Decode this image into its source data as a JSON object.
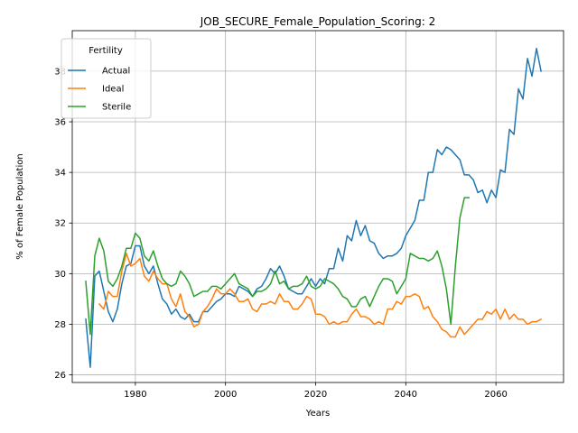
{
  "chart_data": {
    "type": "line",
    "title": "JOB_SECURE_Female_Population_Scoring: 2",
    "xlabel": "Years",
    "ylabel": "% of Female Population",
    "xlim": [
      1966,
      2075
    ],
    "ylim": [
      25.7,
      39.6
    ],
    "xticks": [
      1980,
      2000,
      2020,
      2040,
      2060
    ],
    "xtick_labels": [
      "1980",
      "2000",
      "2020",
      "2040",
      "2060"
    ],
    "yticks": [
      26,
      28,
      30,
      32,
      34,
      36,
      38
    ],
    "ytick_labels": [
      "26",
      "28",
      "30",
      "32",
      "34",
      "36",
      "38"
    ],
    "grid": true,
    "legend": {
      "title": "Fertility",
      "placement": "top-left"
    },
    "series": [
      {
        "name": "Actual",
        "color": "#1f77b4",
        "x": [
          1969,
          1970,
          1971,
          1972,
          1973,
          1974,
          1975,
          1976,
          1977,
          1978,
          1979,
          1980,
          1981,
          1982,
          1983,
          1984,
          1985,
          1986,
          1987,
          1988,
          1989,
          1990,
          1991,
          1992,
          1993,
          1994,
          1995,
          1996,
          1997,
          1998,
          1999,
          2000,
          2001,
          2002,
          2003,
          2004,
          2005,
          2006,
          2007,
          2008,
          2009,
          2010,
          2011,
          2012,
          2013,
          2014,
          2015,
          2016,
          2017,
          2018,
          2019,
          2020,
          2021,
          2022,
          2023,
          2024,
          2025,
          2026,
          2027,
          2028,
          2029,
          2030,
          2031,
          2032,
          2033,
          2034,
          2035,
          2036,
          2037,
          2038,
          2039,
          2040,
          2041,
          2042,
          2043,
          2044,
          2045,
          2046,
          2047,
          2048,
          2049,
          2050,
          2051,
          2052,
          2053,
          2054,
          2055,
          2056,
          2057,
          2058,
          2059,
          2060,
          2061,
          2062,
          2063,
          2064,
          2065,
          2066,
          2067,
          2068,
          2069,
          2070
        ],
        "y": [
          28.2,
          26.3,
          29.9,
          30.1,
          29.3,
          28.5,
          28.1,
          28.6,
          29.6,
          30.3,
          30.4,
          31.1,
          31.1,
          30.3,
          30.0,
          30.3,
          29.6,
          29.0,
          28.8,
          28.4,
          28.6,
          28.3,
          28.2,
          28.4,
          28.1,
          28.1,
          28.5,
          28.5,
          28.7,
          28.9,
          29.0,
          29.2,
          29.2,
          29.1,
          29.5,
          29.4,
          29.3,
          29.1,
          29.4,
          29.5,
          29.8,
          30.2,
          30.0,
          30.3,
          29.9,
          29.4,
          29.3,
          29.2,
          29.2,
          29.5,
          29.8,
          29.5,
          29.8,
          29.6,
          30.2,
          30.2,
          31.0,
          30.5,
          31.5,
          31.3,
          32.1,
          31.5,
          31.9,
          31.3,
          31.2,
          30.8,
          30.6,
          30.7,
          30.7,
          30.8,
          31.0,
          31.5,
          31.8,
          32.1,
          32.9,
          32.9,
          34.0,
          34.0,
          34.9,
          34.7,
          35.0,
          34.9,
          34.7,
          34.5,
          33.9,
          33.9,
          33.7,
          33.2,
          33.3,
          32.8,
          33.3,
          33.0,
          34.1,
          34.0,
          35.7,
          35.5,
          37.3,
          36.9,
          38.5,
          37.8,
          38.9,
          38.0
        ]
      },
      {
        "name": "Ideal",
        "color": "#ff7f0e",
        "x": [
          1972,
          1973,
          1974,
          1975,
          1976,
          1977,
          1978,
          1979,
          1980,
          1981,
          1982,
          1983,
          1984,
          1985,
          1986,
          1987,
          1988,
          1989,
          1990,
          1991,
          1992,
          1993,
          1994,
          1995,
          1996,
          1997,
          1998,
          1999,
          2000,
          2001,
          2002,
          2003,
          2004,
          2005,
          2006,
          2007,
          2008,
          2009,
          2010,
          2011,
          2012,
          2013,
          2014,
          2015,
          2016,
          2017,
          2018,
          2019,
          2020,
          2021,
          2022,
          2023,
          2024,
          2025,
          2026,
          2027,
          2028,
          2029,
          2030,
          2031,
          2032,
          2033,
          2034,
          2035,
          2036,
          2037,
          2038,
          2039,
          2040,
          2041,
          2042,
          2043,
          2044,
          2045,
          2046,
          2047,
          2048,
          2049,
          2050,
          2051,
          2052,
          2053,
          2054,
          2055,
          2056,
          2057,
          2058,
          2059,
          2060,
          2061,
          2062,
          2063,
          2064,
          2065,
          2066,
          2067,
          2068,
          2069,
          2070
        ],
        "y": [
          28.8,
          28.6,
          29.3,
          29.1,
          29.1,
          30.1,
          30.8,
          30.3,
          30.4,
          30.6,
          29.9,
          29.7,
          30.1,
          29.8,
          29.6,
          29.6,
          29.0,
          28.7,
          29.2,
          28.5,
          28.3,
          27.9,
          28.0,
          28.5,
          28.7,
          29.0,
          29.4,
          29.2,
          29.2,
          29.4,
          29.2,
          28.9,
          28.9,
          29.0,
          28.6,
          28.5,
          28.8,
          28.8,
          28.9,
          28.8,
          29.2,
          28.9,
          28.9,
          28.6,
          28.6,
          28.8,
          29.1,
          29.0,
          28.4,
          28.4,
          28.3,
          28.0,
          28.1,
          28.0,
          28.1,
          28.1,
          28.4,
          28.6,
          28.3,
          28.3,
          28.2,
          28.0,
          28.1,
          28.0,
          28.6,
          28.6,
          28.9,
          28.8,
          29.1,
          29.1,
          29.2,
          29.1,
          28.6,
          28.7,
          28.3,
          28.1,
          27.8,
          27.7,
          27.5,
          27.5,
          27.9,
          27.6,
          27.8,
          28.0,
          28.2,
          28.2,
          28.5,
          28.4,
          28.6,
          28.2,
          28.6,
          28.2,
          28.4,
          28.2,
          28.2,
          28.0,
          28.1,
          28.1,
          28.2
        ]
      },
      {
        "name": "Sterile",
        "color": "#2ca02c",
        "x": [
          1969,
          1970,
          1971,
          1972,
          1973,
          1974,
          1975,
          1976,
          1977,
          1978,
          1979,
          1980,
          1981,
          1982,
          1983,
          1984,
          1985,
          1986,
          1987,
          1988,
          1989,
          1990,
          1991,
          1992,
          1993,
          1994,
          1995,
          1996,
          1997,
          1998,
          1999,
          2000,
          2001,
          2002,
          2003,
          2004,
          2005,
          2006,
          2007,
          2008,
          2009,
          2010,
          2011,
          2012,
          2013,
          2014,
          2015,
          2016,
          2017,
          2018,
          2019,
          2020,
          2021,
          2022,
          2023,
          2024,
          2025,
          2026,
          2027,
          2028,
          2029,
          2030,
          2031,
          2032,
          2033,
          2034,
          2035,
          2036,
          2037,
          2038,
          2039,
          2040,
          2041,
          2042,
          2043,
          2044,
          2045,
          2046,
          2047,
          2048,
          2049,
          2050,
          2051,
          2052,
          2053,
          2054
        ],
        "y": [
          29.7,
          27.6,
          30.7,
          31.4,
          30.9,
          29.7,
          29.5,
          29.8,
          30.3,
          31.0,
          31.0,
          31.6,
          31.4,
          30.7,
          30.5,
          30.9,
          30.3,
          29.8,
          29.6,
          29.5,
          29.6,
          30.1,
          29.9,
          29.6,
          29.1,
          29.2,
          29.3,
          29.3,
          29.5,
          29.5,
          29.4,
          29.6,
          29.8,
          30.0,
          29.6,
          29.5,
          29.4,
          29.1,
          29.3,
          29.3,
          29.4,
          29.6,
          30.1,
          29.6,
          29.7,
          29.4,
          29.5,
          29.5,
          29.6,
          29.9,
          29.5,
          29.4,
          29.5,
          29.8,
          29.7,
          29.6,
          29.4,
          29.1,
          29.0,
          28.7,
          28.7,
          29.0,
          29.1,
          28.7,
          29.1,
          29.5,
          29.8,
          29.8,
          29.7,
          29.2,
          29.5,
          29.8,
          30.8,
          30.7,
          30.6,
          30.6,
          30.5,
          30.6,
          30.9,
          30.3,
          29.4,
          28.0,
          30.3,
          32.2,
          33.0,
          33.0
        ]
      }
    ]
  }
}
